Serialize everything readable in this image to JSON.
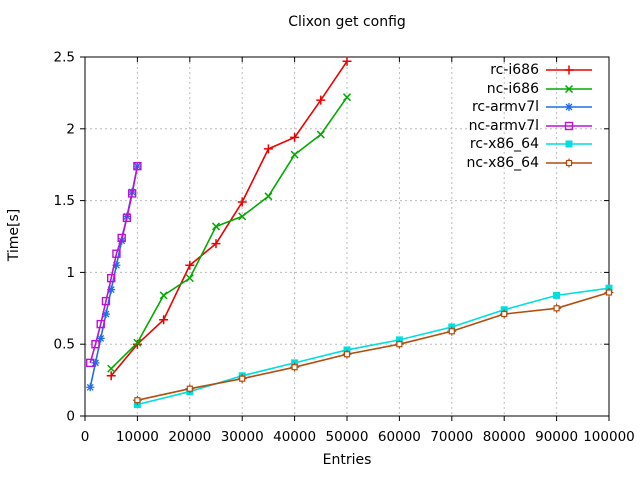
{
  "chart_data": {
    "type": "line",
    "title": "Clixon get config",
    "xlabel": "Entries",
    "ylabel": "Time[s]",
    "xlim": [
      0,
      100000
    ],
    "ylim": [
      0,
      2.5
    ],
    "xticks": [
      0,
      10000,
      20000,
      30000,
      40000,
      50000,
      60000,
      70000,
      80000,
      90000,
      100000
    ],
    "xtick_labels": [
      "0",
      "10000",
      "20000",
      "30000",
      "40000",
      "50000",
      "60000",
      "70000",
      "80000",
      "90000",
      "100000"
    ],
    "yticks": [
      0,
      0.5,
      1,
      1.5,
      2,
      2.5
    ],
    "ytick_labels": [
      "0",
      "0.5",
      "1",
      "1.5",
      "2",
      "2.5"
    ],
    "grid": true,
    "grid_color": "#bbbbbb",
    "axis_color": "#000000",
    "background": "#ffffff",
    "legend_position": "top-right-inside",
    "series": [
      {
        "name": "rc-i686",
        "color": "#ee0000",
        "marker": "plus",
        "x": [
          5000,
          10000,
          15000,
          20000,
          25000,
          30000,
          35000,
          40000,
          45000,
          50000
        ],
        "y": [
          0.28,
          0.5,
          0.67,
          1.05,
          1.2,
          1.49,
          1.86,
          1.94,
          2.2,
          2.47
        ]
      },
      {
        "name": "nc-i686",
        "color": "#00aa00",
        "marker": "cross",
        "x": [
          5000,
          10000,
          15000,
          20000,
          25000,
          30000,
          35000,
          40000,
          45000,
          50000
        ],
        "y": [
          0.33,
          0.51,
          0.84,
          0.96,
          1.32,
          1.39,
          1.53,
          1.82,
          1.96,
          2.22
        ]
      },
      {
        "name": "rc-armv7l",
        "color": "#1e6ee6",
        "marker": "asterisk",
        "x": [
          1000,
          2000,
          3000,
          4000,
          5000,
          6000,
          7000,
          8000,
          9000,
          10000
        ],
        "y": [
          0.2,
          0.37,
          0.54,
          0.71,
          0.88,
          1.05,
          1.22,
          1.39,
          1.56,
          1.74
        ]
      },
      {
        "name": "nc-armv7l",
        "color": "#bd10d9",
        "marker": "square-open",
        "x": [
          1000,
          2000,
          3000,
          4000,
          5000,
          6000,
          7000,
          8000,
          9000,
          10000
        ],
        "y": [
          0.37,
          0.5,
          0.64,
          0.8,
          0.96,
          1.13,
          1.24,
          1.38,
          1.55,
          1.74
        ]
      },
      {
        "name": "rc-x86_64",
        "color": "#00dede",
        "marker": "square-filled",
        "x": [
          10000,
          20000,
          30000,
          40000,
          50000,
          60000,
          70000,
          80000,
          90000,
          100000
        ],
        "y": [
          0.08,
          0.17,
          0.28,
          0.37,
          0.46,
          0.53,
          0.62,
          0.74,
          0.84,
          0.89
        ]
      },
      {
        "name": "nc-x86_64",
        "color": "#b34d0e",
        "marker": "square-plus",
        "x": [
          10000,
          20000,
          30000,
          40000,
          50000,
          60000,
          70000,
          80000,
          90000,
          100000
        ],
        "y": [
          0.11,
          0.19,
          0.26,
          0.34,
          0.43,
          0.5,
          0.59,
          0.71,
          0.75,
          0.86
        ]
      }
    ]
  }
}
